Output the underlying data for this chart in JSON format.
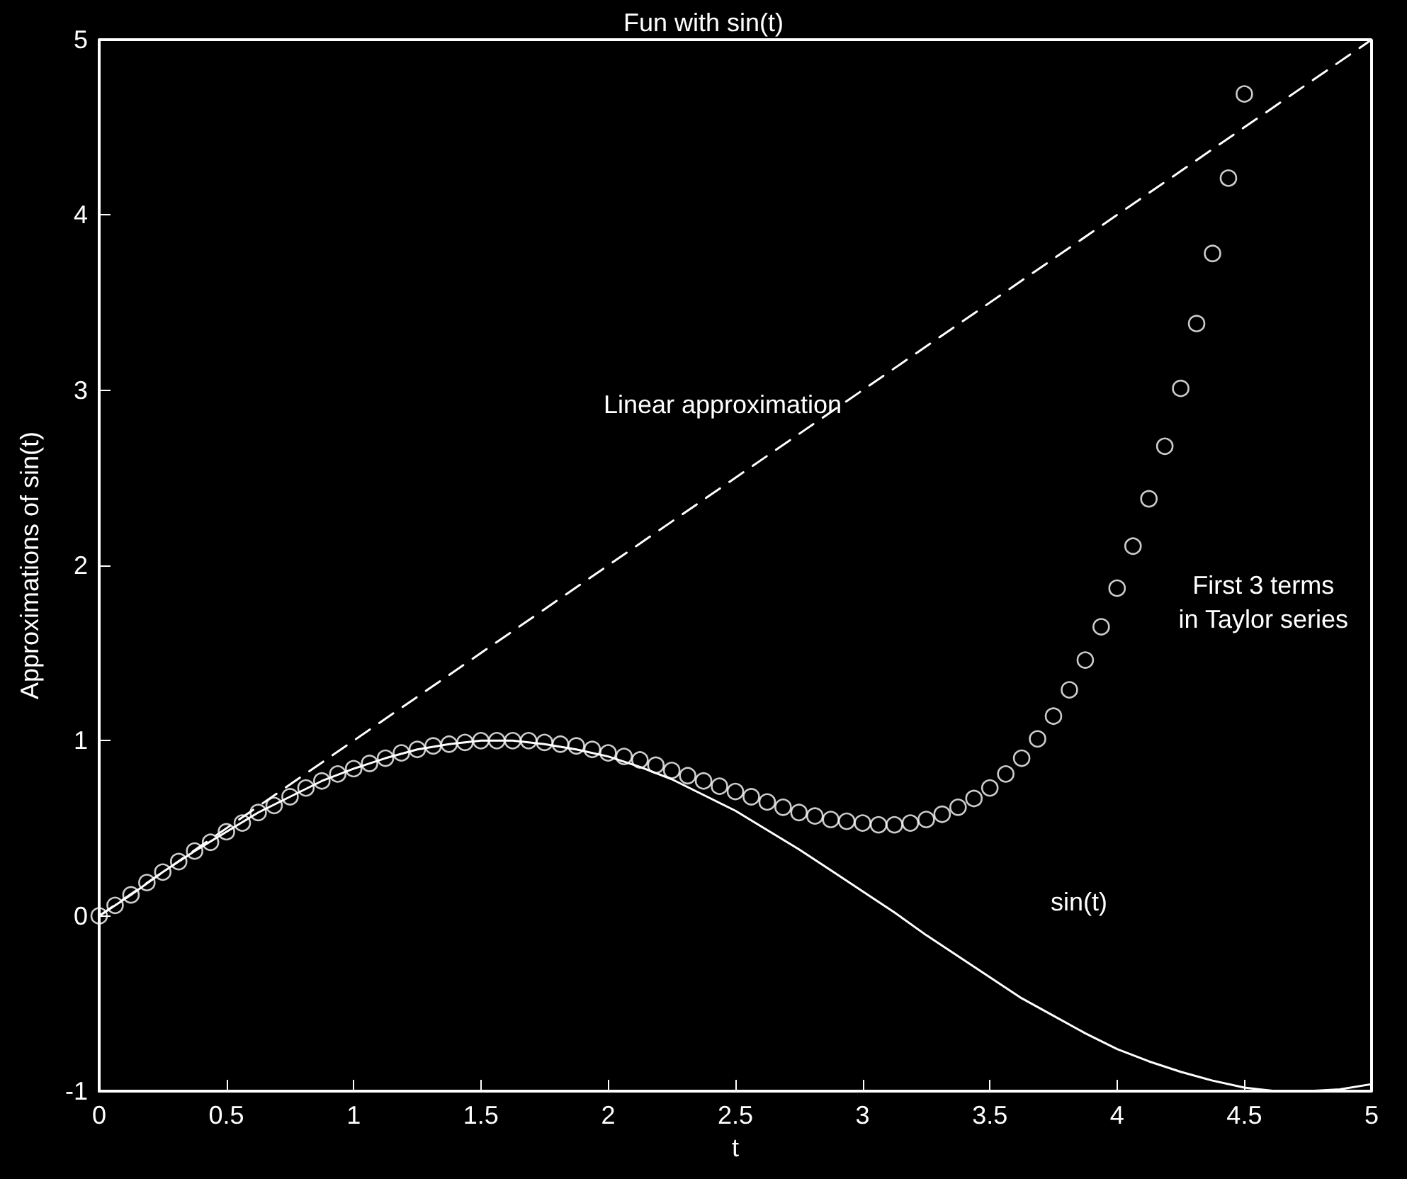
{
  "chart_data": {
    "type": "line",
    "title": "Fun with sin(t)",
    "xlabel": "t",
    "ylabel": "Approximations of sin(t)",
    "xlim": [
      0,
      5
    ],
    "xticks": [
      0,
      0.5,
      1,
      1.5,
      2,
      2.5,
      3,
      3.5,
      4,
      4.5,
      5
    ],
    "ylim": [
      -1,
      5
    ],
    "yticks": [
      -1,
      0,
      1,
      2,
      3,
      4,
      5
    ],
    "series": [
      {
        "type": "line",
        "color": "#ffffff",
        "line_style": "solid",
        "marker": "none",
        "x": [
          0,
          0.125,
          0.25,
          0.375,
          0.5,
          0.625,
          0.75,
          0.875,
          1,
          1.125,
          1.25,
          1.375,
          1.5,
          1.625,
          1.75,
          1.875,
          2,
          2.125,
          2.25,
          2.375,
          2.5,
          2.625,
          2.75,
          2.875,
          3,
          3.125,
          3.25,
          3.375,
          3.5,
          3.625,
          3.75,
          3.875,
          4,
          4.125,
          4.25,
          4.375,
          4.5,
          4.625,
          4.75,
          4.875,
          5
        ],
        "values": [
          0,
          0.12,
          0.25,
          0.37,
          0.48,
          0.59,
          0.68,
          0.77,
          0.84,
          0.9,
          0.95,
          0.98,
          1.0,
          1.0,
          0.98,
          0.95,
          0.91,
          0.85,
          0.78,
          0.69,
          0.6,
          0.49,
          0.38,
          0.26,
          0.14,
          0.02,
          -0.11,
          -0.23,
          -0.35,
          -0.47,
          -0.57,
          -0.67,
          -0.76,
          -0.83,
          -0.89,
          -0.94,
          -0.98,
          -1.0,
          -1.0,
          -0.99,
          -0.96
        ]
      },
      {
        "type": "line",
        "color": "#ffffff",
        "line_style": "dashed",
        "marker": "none",
        "x": [
          0,
          5
        ],
        "values": [
          0,
          5
        ]
      },
      {
        "type": "scatter",
        "color": "#ffffff",
        "marker": "circle",
        "x": [
          0,
          0.0625,
          0.125,
          0.1875,
          0.25,
          0.3125,
          0.375,
          0.4375,
          0.5,
          0.5625,
          0.625,
          0.6875,
          0.75,
          0.8125,
          0.875,
          0.9375,
          1,
          1.0625,
          1.125,
          1.1875,
          1.25,
          1.3125,
          1.375,
          1.4375,
          1.5,
          1.5625,
          1.625,
          1.6875,
          1.75,
          1.8125,
          1.875,
          1.9375,
          2,
          2.0625,
          2.125,
          2.1875,
          2.25,
          2.3125,
          2.375,
          2.4375,
          2.5,
          2.5625,
          2.625,
          2.6875,
          2.75,
          2.8125,
          2.875,
          2.9375,
          3,
          3.0625,
          3.125,
          3.1875,
          3.25,
          3.3125,
          3.375,
          3.4375,
          3.5,
          3.5625,
          3.625,
          3.6875,
          3.75,
          3.8125,
          3.875,
          3.9375,
          4,
          4.0625,
          4.125,
          4.1875,
          4.25,
          4.3125,
          4.375,
          4.4375,
          4.5
        ],
        "values": [
          0,
          0.06,
          0.12,
          0.19,
          0.25,
          0.31,
          0.37,
          0.42,
          0.48,
          0.53,
          0.59,
          0.63,
          0.68,
          0.73,
          0.77,
          0.81,
          0.84,
          0.87,
          0.9,
          0.93,
          0.95,
          0.97,
          0.98,
          0.99,
          1.0,
          1.0,
          1.0,
          1.0,
          0.99,
          0.98,
          0.97,
          0.95,
          0.93,
          0.91,
          0.89,
          0.86,
          0.83,
          0.8,
          0.77,
          0.74,
          0.71,
          0.68,
          0.65,
          0.62,
          0.59,
          0.57,
          0.55,
          0.54,
          0.53,
          0.52,
          0.52,
          0.53,
          0.55,
          0.58,
          0.62,
          0.67,
          0.73,
          0.81,
          0.9,
          1.01,
          1.14,
          1.29,
          1.46,
          1.65,
          1.87,
          2.11,
          2.38,
          2.68,
          3.01,
          3.38,
          3.78,
          4.21,
          4.69
        ]
      }
    ],
    "annotations": [
      "Linear approximation",
      "First 3 terms\nin Taylor series",
      "sin(t)"
    ]
  }
}
